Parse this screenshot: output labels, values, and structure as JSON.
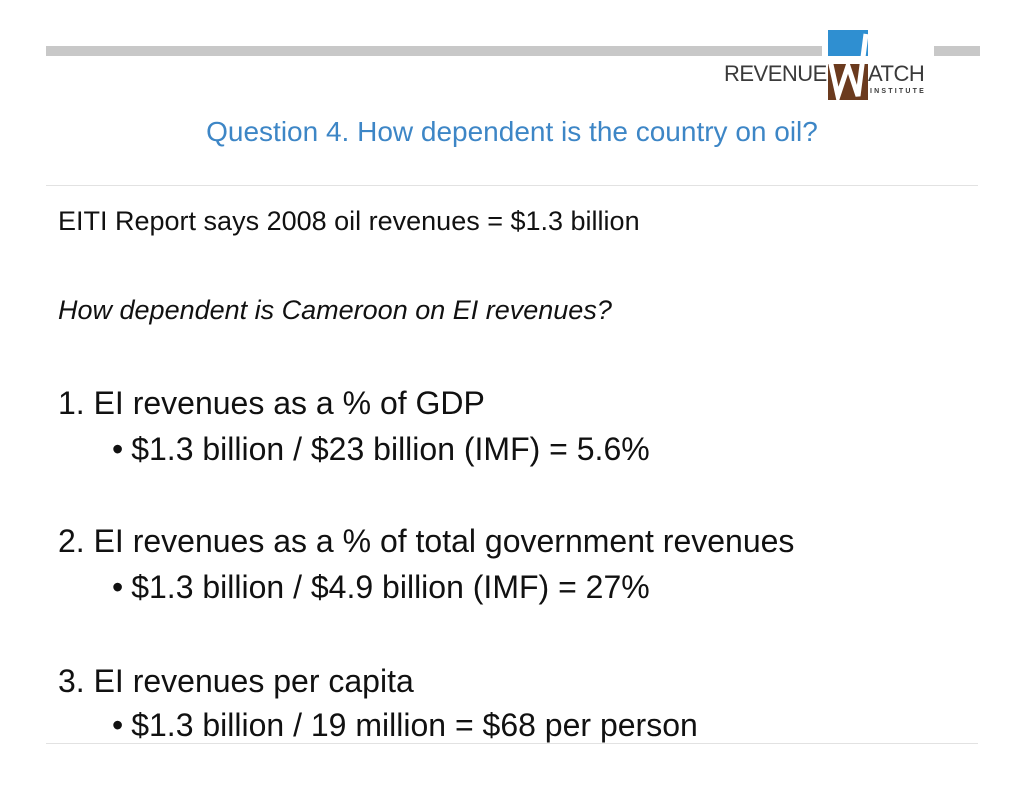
{
  "logo": {
    "text_left": "REVENUE",
    "text_right": "ATCH",
    "sub": "INSTITUTE",
    "colors": {
      "blue": "#2f8fd1",
      "brown": "#6b3a1e",
      "text": "#3a3a3a"
    }
  },
  "title": "Question 4. How dependent is the country on oil?",
  "body": {
    "intro": "EITI Report says 2008 oil revenues = $1.3 billion",
    "question": "How dependent is Cameroon on EI revenues?",
    "items": [
      {
        "heading": "1. EI revenues as a % of GDP",
        "bullet": "$1.3 billion / $23 billion (IMF) = 5.6%"
      },
      {
        "heading": "2. EI revenues as a % of total government revenues",
        "bullet": "$1.3 billion / $4.9 billion (IMF) = 27%"
      },
      {
        "heading": "3. EI revenues per capita",
        "bullet": "$1.3 billion / 19 million = $68 per person"
      }
    ],
    "bullet_symbol": "•"
  },
  "colors": {
    "title": "#3d86c6",
    "bars": "#c8c8c8",
    "text": "#111111"
  }
}
